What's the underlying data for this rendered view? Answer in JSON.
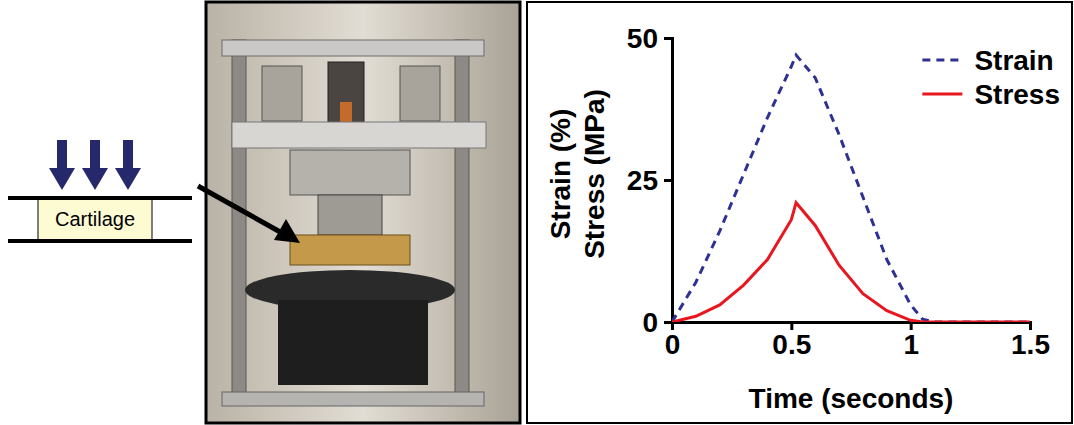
{
  "diagram": {
    "sample_label": "Cartilage"
  },
  "chart_data": {
    "type": "line",
    "x_label": "Time (seconds)",
    "y_label": [
      "Strain (%)",
      "Stress (MPa)"
    ],
    "x": [
      0,
      0.1,
      0.2,
      0.3,
      0.4,
      0.5,
      0.52,
      0.6,
      0.7,
      0.8,
      0.9,
      1.0,
      1.05,
      1.1,
      1.2,
      1.3,
      1.4,
      1.5
    ],
    "series": [
      {
        "name": "Strain",
        "color": "#2e3192",
        "line_style": "dashed",
        "values": [
          0,
          7,
          16,
          26,
          36,
          45,
          47,
          43,
          33,
          22,
          11,
          3,
          0.5,
          0,
          0,
          0,
          0,
          0
        ]
      },
      {
        "name": "Stress",
        "color": "#e8161e",
        "line_style": "solid",
        "values": [
          0,
          1,
          3,
          6.5,
          11,
          18,
          21,
          17,
          10,
          5,
          2,
          0.3,
          0,
          0,
          0,
          0,
          0,
          0
        ]
      }
    ],
    "xlim": [
      0,
      1.5
    ],
    "xticks": [
      0,
      0.5,
      1,
      1.5
    ],
    "ylim": [
      0,
      50
    ],
    "yticks": [
      0,
      25,
      50
    ],
    "legend": "upper right",
    "grid": false
  }
}
